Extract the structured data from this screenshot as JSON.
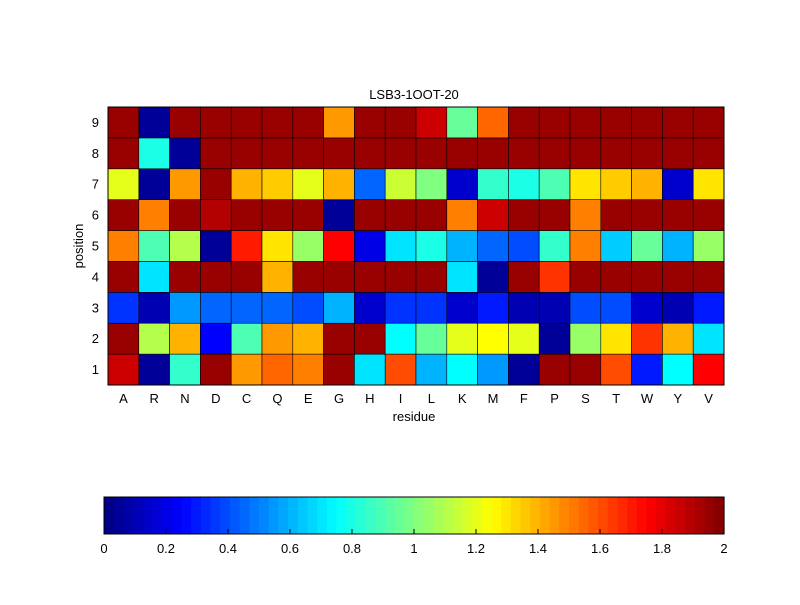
{
  "chart_data": {
    "type": "heatmap",
    "title": "LSB3-1OOT-20",
    "xlabel": "residue",
    "ylabel": "position",
    "x_categories": [
      "A",
      "R",
      "N",
      "D",
      "C",
      "Q",
      "E",
      "G",
      "H",
      "I",
      "L",
      "K",
      "M",
      "F",
      "P",
      "S",
      "T",
      "W",
      "Y",
      "V"
    ],
    "y_categories": [
      "1",
      "2",
      "3",
      "4",
      "5",
      "6",
      "7",
      "8",
      "9"
    ],
    "values": [
      [
        1.85,
        0.05,
        0.85,
        1.95,
        1.45,
        1.55,
        1.5,
        1.95,
        0.7,
        1.6,
        0.6,
        0.75,
        0.55,
        0.05,
        1.95,
        1.95,
        1.6,
        0.3,
        0.75,
        1.75
      ],
      [
        1.95,
        1.1,
        1.4,
        0.25,
        0.9,
        1.45,
        1.4,
        1.95,
        1.95,
        0.75,
        0.95,
        1.2,
        1.25,
        1.2,
        0.05,
        1.05,
        1.3,
        1.65,
        1.4,
        0.7
      ],
      [
        0.35,
        0.1,
        0.55,
        0.45,
        0.45,
        0.45,
        0.4,
        0.6,
        0.15,
        0.35,
        0.35,
        0.15,
        0.3,
        0.1,
        0.1,
        0.4,
        0.4,
        0.15,
        0.1,
        0.3
      ],
      [
        1.95,
        0.7,
        1.95,
        1.95,
        1.95,
        1.4,
        1.95,
        1.95,
        1.95,
        1.95,
        1.95,
        0.7,
        0.05,
        1.95,
        1.65,
        1.95,
        1.95,
        1.95,
        1.95,
        1.95
      ],
      [
        1.5,
        0.9,
        1.1,
        0.05,
        1.7,
        1.3,
        1.05,
        1.75,
        0.2,
        0.7,
        0.8,
        0.6,
        0.45,
        0.4,
        0.85,
        1.5,
        0.65,
        0.95,
        0.6,
        1.05
      ],
      [
        1.95,
        1.5,
        1.95,
        1.9,
        1.95,
        1.95,
        1.95,
        0.05,
        1.95,
        1.95,
        1.95,
        1.5,
        1.85,
        1.95,
        1.95,
        1.5,
        1.95,
        1.95,
        1.95,
        1.95
      ],
      [
        1.2,
        0.05,
        1.45,
        1.95,
        1.4,
        1.35,
        1.2,
        1.4,
        0.45,
        1.15,
        1.0,
        0.15,
        0.85,
        0.8,
        0.9,
        1.3,
        1.35,
        1.4,
        0.15,
        1.3
      ],
      [
        1.95,
        0.8,
        0.05,
        1.95,
        1.95,
        1.95,
        1.95,
        1.95,
        1.95,
        1.95,
        1.95,
        1.95,
        1.95,
        1.95,
        1.95,
        1.95,
        1.95,
        1.95,
        1.95,
        1.95
      ],
      [
        1.95,
        0.05,
        1.95,
        1.95,
        1.95,
        1.95,
        1.95,
        1.45,
        1.95,
        1.95,
        1.85,
        0.95,
        1.55,
        1.95,
        1.95,
        1.95,
        1.95,
        1.95,
        1.95,
        1.95
      ]
    ],
    "colormap": "jet",
    "color_range": [
      0,
      2
    ],
    "colorbar": {
      "placement": "bottom",
      "ticks": [
        "0",
        "0.2",
        "0.4",
        "0.6",
        "0.8",
        "1",
        "1.2",
        "1.4",
        "1.6",
        "1.8",
        "2"
      ]
    },
    "grid": false
  }
}
